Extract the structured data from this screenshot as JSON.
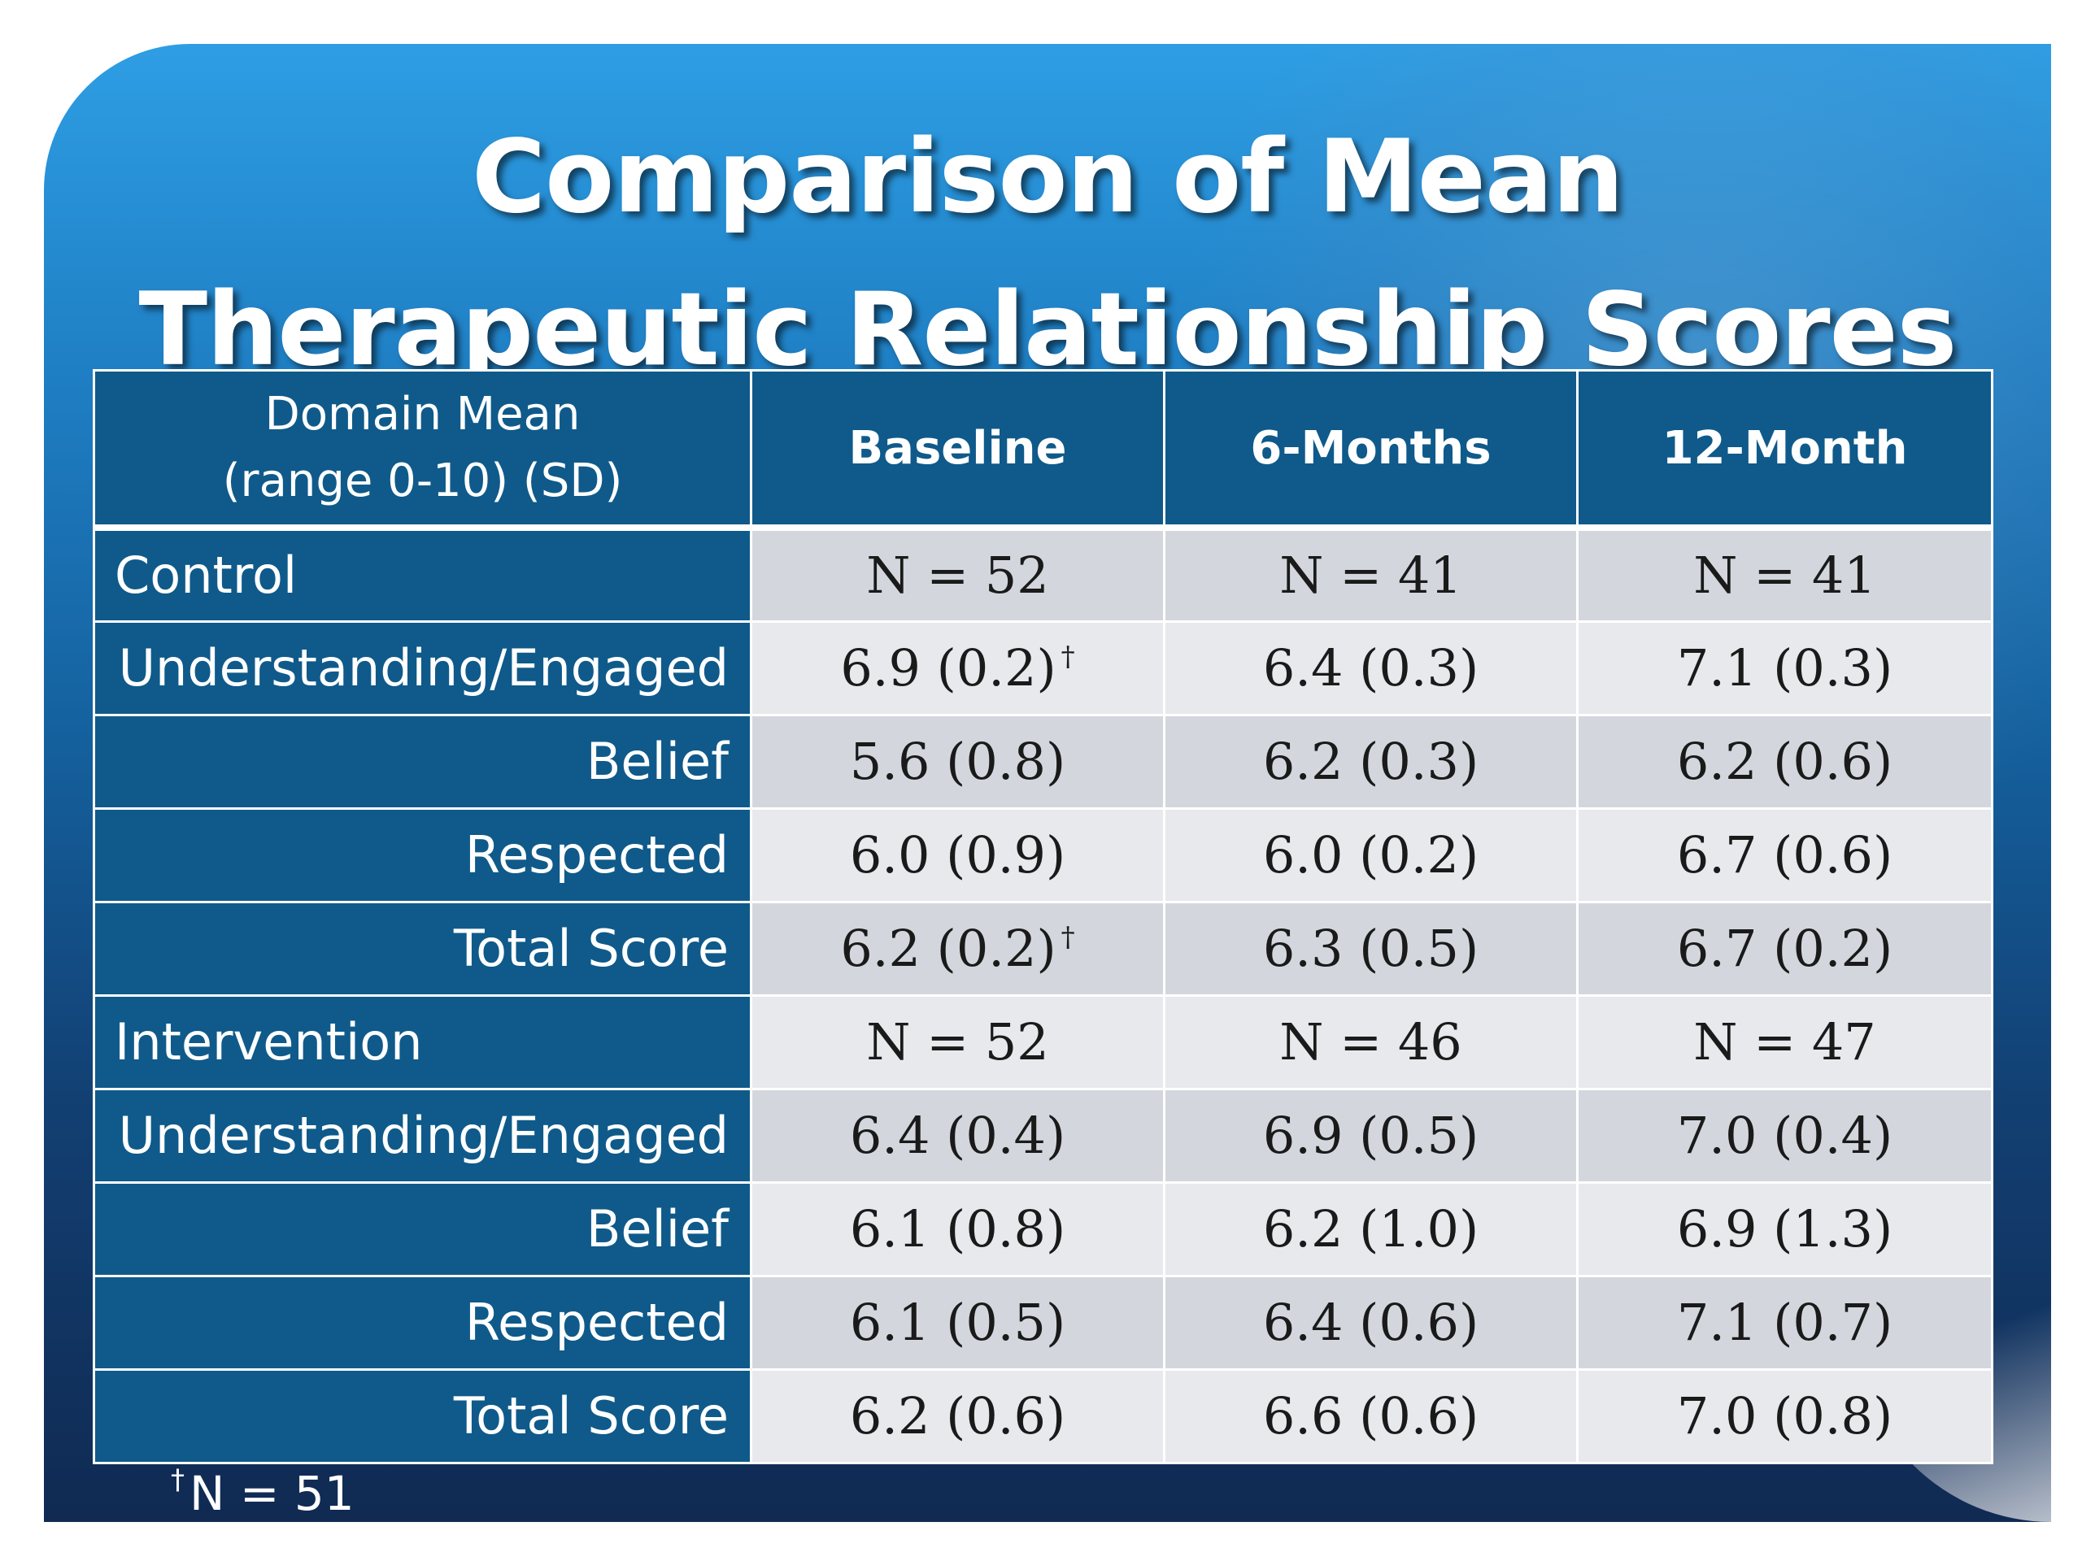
{
  "title": {
    "line1": "Comparison of Mean",
    "line2": "Therapeutic Relationship Scores"
  },
  "table": {
    "header": {
      "domain_line1": "Domain Mean",
      "domain_line2": "(range 0-10) (SD)",
      "baseline": "Baseline",
      "six_months": "6-Months",
      "twelve_month": "12-Month"
    },
    "rows": [
      {
        "label": "Control",
        "baseline": "N = 52",
        "six_months": "N = 41",
        "twelve_month": "N = 41"
      },
      {
        "label": "Understanding/Engaged",
        "baseline": "6.9 (0.2)",
        "baseline_mark": "†",
        "six_months": "6.4 (0.3)",
        "twelve_month": "7.1 (0.3)"
      },
      {
        "label": "Belief",
        "baseline": "5.6 (0.8)",
        "six_months": "6.2 (0.3)",
        "twelve_month": "6.2 (0.6)"
      },
      {
        "label": "Respected",
        "baseline": "6.0 (0.9)",
        "six_months": "6.0 (0.2)",
        "twelve_month": "6.7 (0.6)"
      },
      {
        "label": "Total Score",
        "baseline": "6.2 (0.2)",
        "baseline_mark": "†",
        "six_months": "6.3 (0.5)",
        "twelve_month": "6.7 (0.2)"
      },
      {
        "label": "Intervention",
        "baseline": "N = 52",
        "six_months": "N = 46",
        "twelve_month": "N = 47"
      },
      {
        "label": "Understanding/Engaged",
        "baseline": "6.4 (0.4)",
        "six_months": "6.9 (0.5)",
        "twelve_month": "7.0 (0.4)"
      },
      {
        "label": "Belief",
        "baseline": "6.1 (0.8)",
        "six_months": "6.2 (1.0)",
        "twelve_month": "6.9 (1.3)"
      },
      {
        "label": "Respected",
        "baseline": "6.1 (0.5)",
        "six_months": "6.4 (0.6)",
        "twelve_month": "7.1 (0.7)"
      },
      {
        "label": "Total Score",
        "baseline": "6.2 (0.6)",
        "six_months": "6.6 (0.6)",
        "twelve_month": "7.0 (0.8)"
      }
    ]
  },
  "footnote": {
    "mark": "†",
    "text": "N = 51"
  }
}
